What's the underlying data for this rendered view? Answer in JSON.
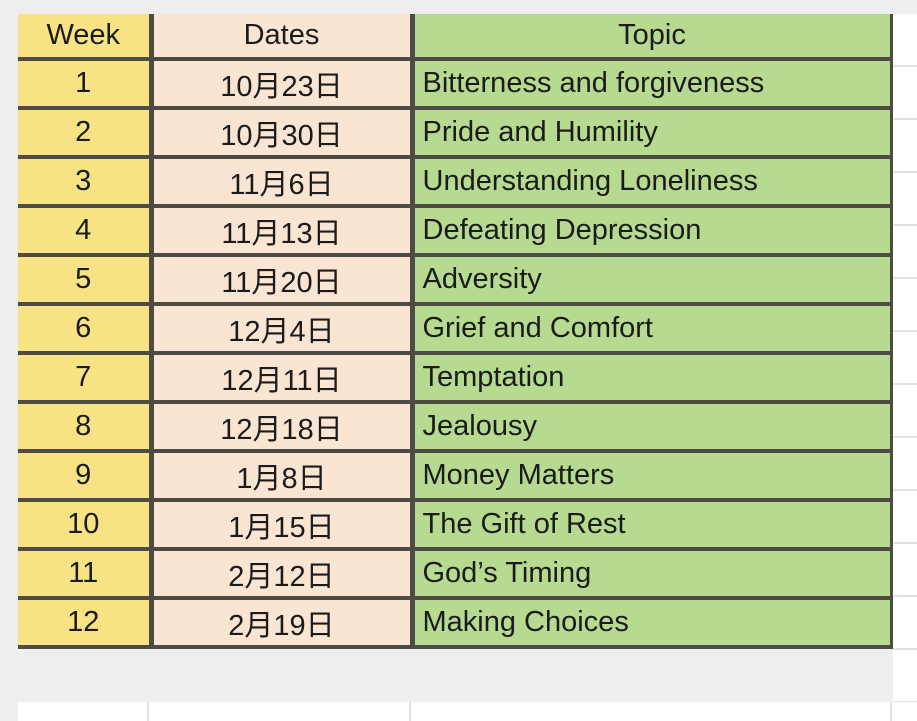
{
  "table": {
    "headers": {
      "week": "Week",
      "dates": "Dates",
      "topic": "Topic"
    },
    "rows": [
      {
        "week": "1",
        "date": "10月23日",
        "topic": "Bitterness and forgiveness"
      },
      {
        "week": "2",
        "date": "10月30日",
        "topic": "Pride and Humility"
      },
      {
        "week": "3",
        "date": "11月6日",
        "topic": "Understanding Loneliness"
      },
      {
        "week": "4",
        "date": "11月13日",
        "topic": "Defeating Depression"
      },
      {
        "week": "5",
        "date": "11月20日",
        "topic": "Adversity"
      },
      {
        "week": "6",
        "date": "12月4日",
        "topic": "Grief and Comfort"
      },
      {
        "week": "7",
        "date": "12月11日",
        "topic": "Temptation"
      },
      {
        "week": "8",
        "date": "12月18日",
        "topic": "Jealousy"
      },
      {
        "week": "9",
        "date": "1月8日",
        "topic": "Money Matters"
      },
      {
        "week": "10",
        "date": "1月15日",
        "topic": "The Gift of Rest"
      },
      {
        "week": "11",
        "date": "2月12日",
        "topic": "God’s Timing"
      },
      {
        "week": "12",
        "date": "2月19日",
        "topic": "Making Choices"
      }
    ]
  },
  "colors": {
    "week_column": "#f7e383",
    "dates_column": "#fae5d3",
    "topic_column": "#b5da90",
    "border": "#4e4b45",
    "canvas": "#efeeee",
    "gridline": "#e2e2e2",
    "text": "#1b1b1b"
  }
}
